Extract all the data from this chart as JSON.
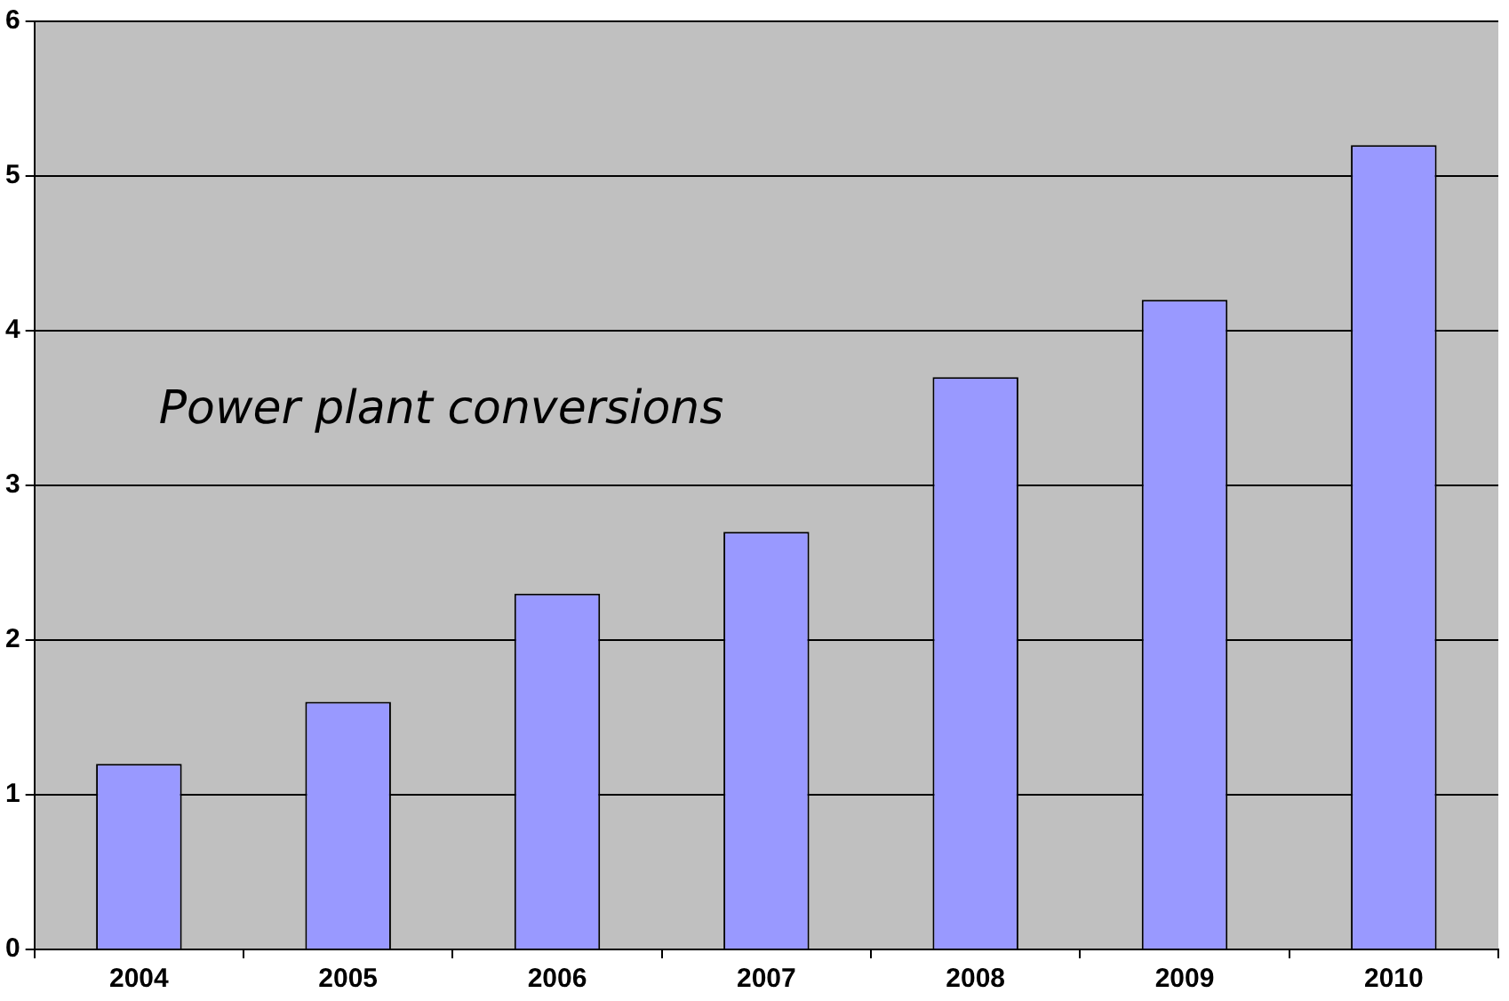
{
  "chart_data": {
    "type": "bar",
    "categories": [
      "2004",
      "2005",
      "2006",
      "2007",
      "2008",
      "2009",
      "2010"
    ],
    "values": [
      1.2,
      1.6,
      2.3,
      2.7,
      3.7,
      4.2,
      5.2
    ],
    "color": "#9999ff",
    "ylim": [
      0,
      6
    ],
    "yticks": [
      0,
      1,
      2,
      3,
      4,
      5,
      6
    ],
    "grid": "y",
    "legend": false,
    "annotations": [
      "Power plant conversions"
    ]
  }
}
